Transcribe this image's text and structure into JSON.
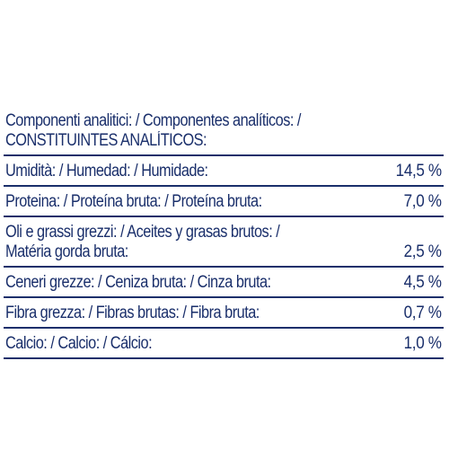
{
  "header": {
    "line1": "Componenti analitici: / Componentes analíticos: /",
    "line2": "CONSTITUINTES ANALÍTICOS:"
  },
  "rows": [
    {
      "label": "Umidità: / Humedad: / Humidade:",
      "value": "14,5 %"
    },
    {
      "label": "Proteina: / Proteína bruta: / Proteína bruta:",
      "value": "7,0 %"
    },
    {
      "label_line1": "Oli e grassi grezzi: / Aceites y grasas brutos: /",
      "label_line2": "Matéria gorda bruta:",
      "value": "2,5 %"
    },
    {
      "label": "Ceneri grezze: / Ceniza bruta: / Cinza bruta:",
      "value": "4,5 %"
    },
    {
      "label": "Fibra grezza: / Fibras brutas: / Fibra bruta:",
      "value": "0,7 %"
    },
    {
      "label": "Calcio: / Calcio: / Cálcio:",
      "value": "1,0 %"
    }
  ],
  "colors": {
    "text": "#1a2f6b",
    "rule": "#1a2f6b",
    "background": "#ffffff"
  }
}
